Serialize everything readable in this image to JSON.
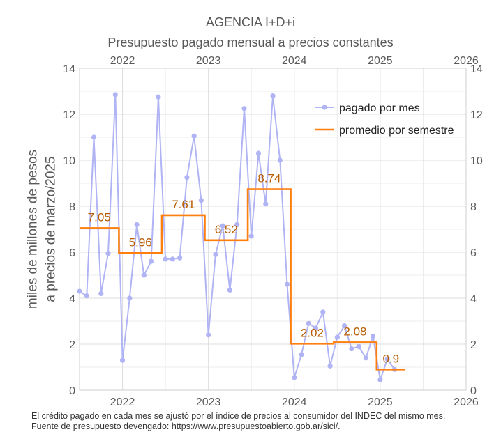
{
  "chart_data": {
    "type": "line",
    "title": "AGENCIA I+D+i",
    "subtitle": "Presupuesto pagado mensual a precios constantes",
    "ylabel_line1": "miles de millones de pesos",
    "ylabel_line2": "a precios de marzo/2025",
    "xlabel": "",
    "xlim": [
      2021.5,
      2026.0
    ],
    "ylim": [
      0,
      14
    ],
    "y_ticks": [
      0,
      2,
      4,
      6,
      8,
      10,
      12,
      14
    ],
    "x_ticks": [
      {
        "value": 2022,
        "label": "2022"
      },
      {
        "value": 2023,
        "label": "2023"
      },
      {
        "value": 2024,
        "label": "2024"
      },
      {
        "value": 2025,
        "label": "2025"
      },
      {
        "value": 2026,
        "label": "2026"
      }
    ],
    "grid": true,
    "legend_position": "top-right",
    "colors": {
      "monthly": "#b0b4f4",
      "semester": "#ff7f0e",
      "label": "#b85c00",
      "grid": "#dcdcdc",
      "axis": "#595959"
    },
    "series": [
      {
        "name": "pagado por mes",
        "style": "line-markers",
        "x": [
          2021.5,
          2021.5833,
          2021.6667,
          2021.75,
          2021.8333,
          2021.9167,
          2022.0,
          2022.0833,
          2022.1667,
          2022.25,
          2022.3333,
          2022.4167,
          2022.5,
          2022.5833,
          2022.6667,
          2022.75,
          2022.8333,
          2022.9167,
          2023.0,
          2023.0833,
          2023.1667,
          2023.25,
          2023.3333,
          2023.4167,
          2023.5,
          2023.5833,
          2023.6667,
          2023.75,
          2023.8333,
          2023.9167,
          2024.0,
          2024.0833,
          2024.1667,
          2024.25,
          2024.3333,
          2024.4167,
          2024.5,
          2024.5833,
          2024.6667,
          2024.75,
          2024.8333,
          2024.9167,
          2025.0,
          2025.0833,
          2025.1667
        ],
        "values": [
          4.3,
          4.1,
          11.0,
          4.2,
          5.95,
          12.85,
          1.3,
          4.0,
          7.2,
          5.0,
          5.6,
          12.75,
          5.7,
          5.7,
          5.75,
          9.25,
          11.05,
          8.25,
          2.4,
          5.9,
          7.15,
          4.35,
          7.2,
          12.25,
          6.7,
          10.3,
          8.1,
          12.8,
          10.0,
          4.6,
          0.55,
          1.55,
          2.9,
          2.7,
          3.4,
          1.05,
          2.3,
          2.8,
          1.8,
          1.9,
          1.4,
          2.35,
          0.45,
          1.35,
          0.9
        ]
      },
      {
        "name": "promedio por semestre",
        "style": "step",
        "segments": [
          {
            "x0": 2021.5,
            "x1": 2021.9583,
            "value": 7.05,
            "label": "7.05"
          },
          {
            "x0": 2021.9583,
            "x1": 2022.4583,
            "value": 5.96,
            "label": "5.96"
          },
          {
            "x0": 2022.4583,
            "x1": 2022.9583,
            "value": 7.61,
            "label": "7.61"
          },
          {
            "x0": 2022.9583,
            "x1": 2023.4583,
            "value": 6.52,
            "label": "6.52"
          },
          {
            "x0": 2023.4583,
            "x1": 2023.9583,
            "value": 8.74,
            "label": "8.74"
          },
          {
            "x0": 2023.9583,
            "x1": 2024.4583,
            "value": 2.02,
            "label": "2.02"
          },
          {
            "x0": 2024.4583,
            "x1": 2024.9583,
            "value": 2.08,
            "label": "2.08"
          },
          {
            "x0": 2024.9583,
            "x1": 2025.2917,
            "value": 0.9,
            "label": "0.9"
          }
        ]
      }
    ]
  },
  "caption": {
    "line1": "El crédito pagado en cada mes se ajustó por el índice de precios al consumidor del INDEC del mismo mes.",
    "line2": "Fuente de presupuesto devengado: https://www.presupuestoabierto.gob.ar/sici/."
  }
}
